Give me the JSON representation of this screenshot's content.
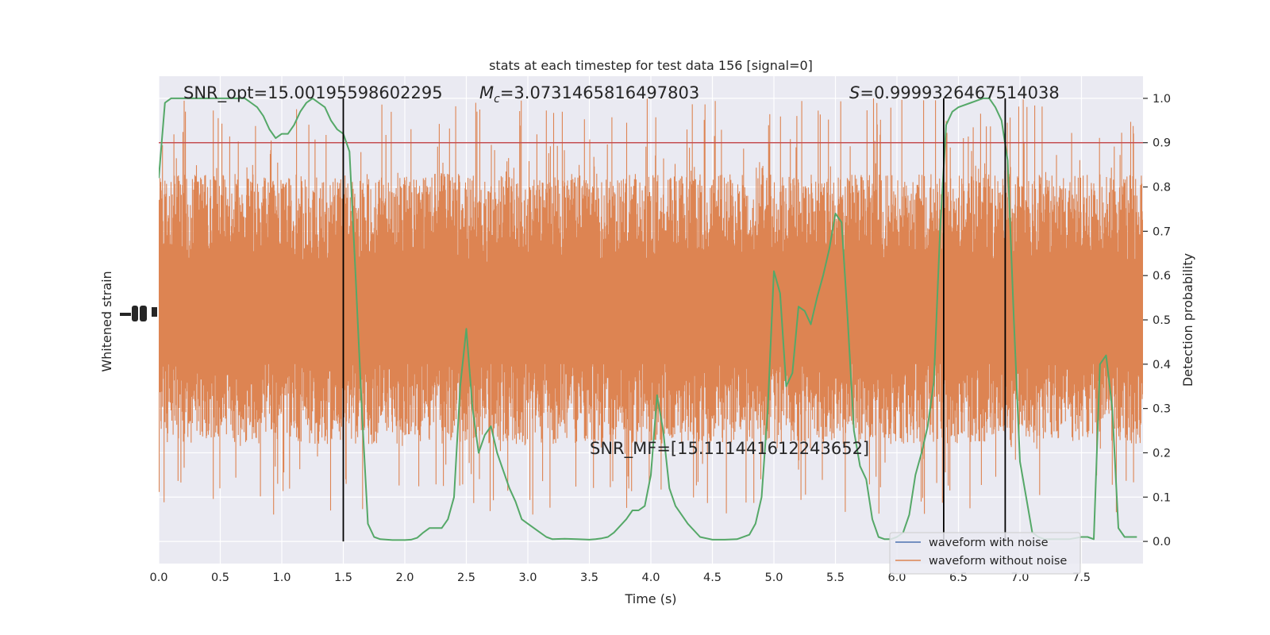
{
  "chart_data": {
    "type": "line",
    "title": "stats at each timestep for test data 156 [signal=0]",
    "xlabel": "Time (s)",
    "ylabel_left": "Whitened strain",
    "ylabel_right": "Detection probability",
    "xlim": [
      0.0,
      8.0
    ],
    "ylim_right": [
      -0.05,
      1.05
    ],
    "x_ticks": [
      "0.0",
      "0.5",
      "1.0",
      "1.5",
      "2.0",
      "2.5",
      "3.0",
      "3.5",
      "4.0",
      "4.5",
      "5.0",
      "5.5",
      "6.0",
      "6.5",
      "7.0",
      "7.5"
    ],
    "y_ticks_right": [
      "0.0",
      "0.1",
      "0.2",
      "0.3",
      "0.4",
      "0.5",
      "0.6",
      "0.7",
      "0.8",
      "0.9",
      "1.0"
    ],
    "threshold": 0.9,
    "vertical_lines": [
      1.5,
      6.38,
      6.88
    ],
    "annotations": {
      "snr_opt": "SNR_opt=15.00195598602295",
      "mc_symbol": "M",
      "mc_sub": "c",
      "mc_value": "=3.0731465816497803",
      "s_symbol": "S",
      "s_value": "=0.9999326467514038",
      "snr_mf": "SNR_MF=[15.111441612243652]"
    },
    "legend": [
      {
        "label": "waveform with noise",
        "color": "#4c72b0"
      },
      {
        "label": "waveform without noise",
        "color": "#dd8452"
      }
    ],
    "colors": {
      "strain": "#dd8452",
      "probability": "#55a868",
      "threshold": "#c44e52",
      "vlines": "#000000",
      "background": "#eaeaf2",
      "grid": "#ffffff"
    },
    "probability_series": {
      "x": [
        0.0,
        0.05,
        0.1,
        0.15,
        0.2,
        0.3,
        0.4,
        0.5,
        0.6,
        0.7,
        0.75,
        0.8,
        0.85,
        0.9,
        0.95,
        1.0,
        1.05,
        1.1,
        1.15,
        1.2,
        1.25,
        1.3,
        1.35,
        1.4,
        1.45,
        1.5,
        1.55,
        1.6,
        1.65,
        1.7,
        1.75,
        1.8,
        1.9,
        2.0,
        2.05,
        2.1,
        2.15,
        2.2,
        2.3,
        2.35,
        2.4,
        2.45,
        2.5,
        2.55,
        2.6,
        2.65,
        2.7,
        2.75,
        2.8,
        2.85,
        2.9,
        2.95,
        3.0,
        3.1,
        3.15,
        3.2,
        3.3,
        3.4,
        3.5,
        3.55,
        3.6,
        3.65,
        3.7,
        3.8,
        3.85,
        3.9,
        3.95,
        4.0,
        4.05,
        4.1,
        4.15,
        4.2,
        4.3,
        4.4,
        4.5,
        4.6,
        4.7,
        4.8,
        4.85,
        4.9,
        4.95,
        5.0,
        5.05,
        5.1,
        5.15,
        5.2,
        5.25,
        5.3,
        5.35,
        5.4,
        5.45,
        5.5,
        5.55,
        5.6,
        5.65,
        5.7,
        5.75,
        5.8,
        5.85,
        5.9,
        5.95,
        6.0,
        6.05,
        6.1,
        6.15,
        6.2,
        6.25,
        6.3,
        6.35,
        6.4,
        6.45,
        6.5,
        6.6,
        6.7,
        6.75,
        6.8,
        6.85,
        6.9,
        6.95,
        7.0,
        7.05,
        7.1,
        7.15,
        7.2,
        7.3,
        7.4,
        7.5,
        7.55,
        7.6,
        7.65,
        7.7,
        7.75,
        7.8,
        7.85,
        7.9,
        7.95
      ],
      "y": [
        0.82,
        0.99,
        1.0,
        1.0,
        1.0,
        1.0,
        1.0,
        1.0,
        1.0,
        1.0,
        0.99,
        0.98,
        0.96,
        0.93,
        0.91,
        0.92,
        0.92,
        0.94,
        0.97,
        0.99,
        1.0,
        0.99,
        0.98,
        0.95,
        0.93,
        0.92,
        0.88,
        0.6,
        0.3,
        0.04,
        0.01,
        0.005,
        0.003,
        0.003,
        0.004,
        0.008,
        0.02,
        0.03,
        0.03,
        0.05,
        0.1,
        0.35,
        0.48,
        0.3,
        0.2,
        0.24,
        0.26,
        0.2,
        0.16,
        0.12,
        0.09,
        0.05,
        0.04,
        0.02,
        0.01,
        0.005,
        0.006,
        0.005,
        0.004,
        0.005,
        0.007,
        0.01,
        0.02,
        0.05,
        0.07,
        0.07,
        0.08,
        0.15,
        0.33,
        0.25,
        0.12,
        0.08,
        0.04,
        0.01,
        0.004,
        0.004,
        0.005,
        0.015,
        0.04,
        0.1,
        0.3,
        0.61,
        0.56,
        0.35,
        0.38,
        0.53,
        0.52,
        0.49,
        0.55,
        0.6,
        0.66,
        0.74,
        0.72,
        0.5,
        0.25,
        0.17,
        0.14,
        0.05,
        0.01,
        0.005,
        0.005,
        0.01,
        0.02,
        0.06,
        0.15,
        0.2,
        0.26,
        0.36,
        0.7,
        0.94,
        0.97,
        0.98,
        0.99,
        1.0,
        1.0,
        0.98,
        0.95,
        0.86,
        0.5,
        0.18,
        0.1,
        0.02,
        0.01,
        0.005,
        0.005,
        0.005,
        0.01,
        0.01,
        0.005,
        0.4,
        0.42,
        0.3,
        0.03,
        0.01,
        0.01,
        0.01
      ]
    },
    "strain_band": {
      "description": "dense noise band centred at probability-axis 0.5",
      "core_range": [
        0.3,
        0.75
      ],
      "spike_range": [
        0.06,
        1.0
      ]
    }
  }
}
